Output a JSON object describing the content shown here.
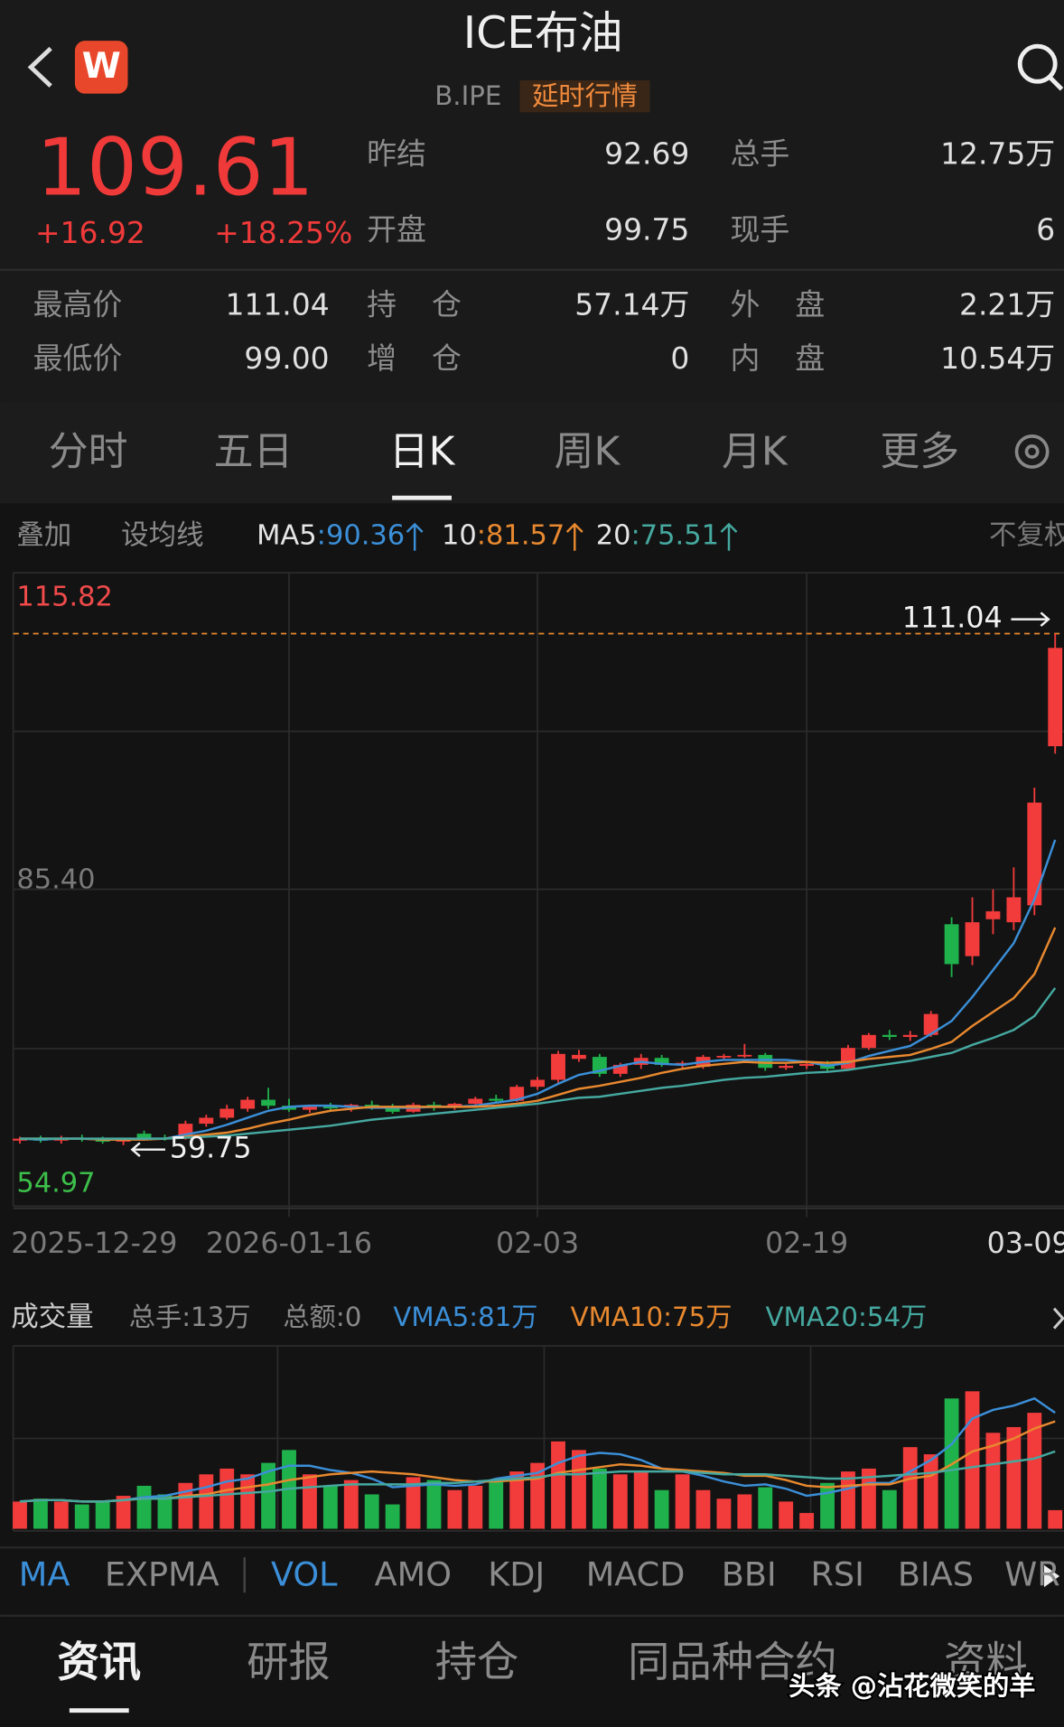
{
  "header": {
    "app_icon": "W",
    "title": "ICE布油",
    "code": "B.IPE",
    "badge": "延时行情"
  },
  "quote": {
    "price": "109.61",
    "change": "+16.92",
    "change_pct": "+18.25%",
    "rows": [
      [
        [
          "昨结",
          "92.69"
        ],
        [
          "总手",
          "12.75万"
        ]
      ],
      [
        [
          "开盘",
          "99.75"
        ],
        [
          "现手",
          "6"
        ]
      ],
      [
        [
          "最高价",
          "111.04"
        ],
        [
          "持 仓",
          "57.14万"
        ],
        [
          "外 盘",
          "2.21万"
        ]
      ],
      [
        [
          "最低价",
          "99.00"
        ],
        [
          "增 仓",
          "0"
        ],
        [
          "内 盘",
          "10.54万"
        ]
      ]
    ]
  },
  "tabs": {
    "items": [
      "分时",
      "五日",
      "日K",
      "周K",
      "月K",
      "更多"
    ],
    "active": 2
  },
  "toolbar": {
    "items": [
      "叠加",
      "设均线"
    ],
    "separator": ":",
    "right": "不复权"
  },
  "chart_data": [
    {
      "type": "candlestick",
      "categories": [
        "2025-12-29",
        null,
        null,
        null,
        null,
        null,
        null,
        null,
        null,
        null,
        null,
        null,
        null,
        "2026-01-16",
        null,
        null,
        null,
        null,
        null,
        null,
        null,
        null,
        null,
        null,
        null,
        "02-03",
        null,
        null,
        null,
        null,
        null,
        null,
        null,
        null,
        null,
        null,
        null,
        null,
        "02-19",
        null,
        null,
        null,
        null,
        null,
        null,
        null,
        null,
        null,
        null,
        null,
        "03-09"
      ],
      "open": [
        60.2,
        60.4,
        60.2,
        60.5,
        60.3,
        60.1,
        60.9,
        60.5,
        60.4,
        61.9,
        62.5,
        63.4,
        64.3,
        63.7,
        63.3,
        63.6,
        63.5,
        63.8,
        63.5,
        63.1,
        63.8,
        63.5,
        63.9,
        64.4,
        64.2,
        65.6,
        66.3,
        68.4,
        68.6,
        66.9,
        67.8,
        68.5,
        67.8,
        67.6,
        68.6,
        68.7,
        68.8,
        67.5,
        67.7,
        67.9,
        67.4,
        69.5,
        70.8,
        70.6,
        70.8,
        81.9,
        78.7,
        82.4,
        82.1,
        83.8,
        99.75
      ],
      "high": [
        60.6,
        60.7,
        60.7,
        60.8,
        60.6,
        60.5,
        61.2,
        60.8,
        62.2,
        62.8,
        63.8,
        64.6,
        65.5,
        64.4,
        63.8,
        64.0,
        63.9,
        64.2,
        63.9,
        64.0,
        64.1,
        64.0,
        64.6,
        64.8,
        65.8,
        66.6,
        69.2,
        69.3,
        68.9,
        68.0,
        68.9,
        68.8,
        68.2,
        68.8,
        68.9,
        69.9,
        69.0,
        67.9,
        68.1,
        68.2,
        69.8,
        71.0,
        71.3,
        71.2,
        73.2,
        82.6,
        84.6,
        85.4,
        87.6,
        95.6,
        111.04
      ],
      "low": [
        59.9,
        60.0,
        59.9,
        60.1,
        59.9,
        59.75,
        60.3,
        60.2,
        60.3,
        61.6,
        62.3,
        63.1,
        63.4,
        63.1,
        63.0,
        63.3,
        63.1,
        63.3,
        62.9,
        63.0,
        63.2,
        63.3,
        63.6,
        64.0,
        64.1,
        65.3,
        66.0,
        68.1,
        66.6,
        66.6,
        67.4,
        67.6,
        67.5,
        67.4,
        68.2,
        68.5,
        67.2,
        67.3,
        67.4,
        67.1,
        67.2,
        69.3,
        70.3,
        70.2,
        70.6,
        76.6,
        77.8,
        80.9,
        81.3,
        82.8,
        99
      ],
      "close": [
        60.4,
        60.2,
        60.5,
        60.3,
        60.1,
        60.4,
        60.5,
        60.4,
        61.9,
        62.5,
        63.4,
        64.3,
        63.7,
        63.3,
        63.6,
        63.5,
        63.8,
        63.5,
        63.1,
        63.8,
        63.5,
        63.9,
        64.4,
        64.2,
        65.6,
        66.3,
        68.9,
        68.8,
        66.9,
        67.8,
        68.5,
        67.8,
        68.0,
        68.6,
        68.7,
        68.8,
        67.5,
        67.7,
        67.9,
        67.4,
        69.5,
        70.8,
        70.6,
        70.8,
        72.9,
        77.9,
        82.1,
        83.2,
        84.6,
        94.1,
        109.61
      ],
      "up_color": "#f23b3b",
      "down_color": "#1fb14b",
      "ylim": [
        54.97,
        115.82
      ],
      "yticks": [
        115.82,
        {
          "value": 85.4,
          "label": "85.40"
        },
        54.97
      ],
      "series": [
        {
          "name": "MA5",
          "color": "#3b8fd8",
          "values": [
            60.4,
            60.3,
            60.4,
            60.4,
            60.3,
            60.3,
            60.4,
            60.4,
            60.8,
            61.2,
            61.8,
            62.5,
            63.2,
            63.6,
            63.7,
            63.7,
            63.6,
            63.5,
            63.5,
            63.5,
            63.6,
            63.6,
            63.7,
            64.0,
            64.3,
            64.9,
            65.9,
            66.8,
            67.2,
            67.7,
            68.1,
            67.9,
            67.8,
            68.1,
            68.3,
            68.3,
            68.3,
            68.3,
            68.1,
            67.7,
            68.0,
            68.7,
            69.2,
            69.7,
            70.9,
            72.2,
            74.6,
            77.3,
            80.0,
            84.4,
            90.36
          ]
        },
        {
          "name": "10",
          "color": "#e8892f",
          "values": [
            60.4,
            60.4,
            60.4,
            60.4,
            60.3,
            60.3,
            60.3,
            60.4,
            60.6,
            60.8,
            61.0,
            61.4,
            61.9,
            62.3,
            62.8,
            63.2,
            63.4,
            63.6,
            63.6,
            63.6,
            63.6,
            63.6,
            63.6,
            63.7,
            63.9,
            64.2,
            64.8,
            65.4,
            65.7,
            66.1,
            66.5,
            67.0,
            67.4,
            67.7,
            67.9,
            68.1,
            68.0,
            68.0,
            68.1,
            68.0,
            68.1,
            68.4,
            68.6,
            68.8,
            69.4,
            70.1,
            71.7,
            73.1,
            74.5,
            76.9,
            81.57
          ]
        },
        {
          "name": "20",
          "color": "#45a9a0",
          "values": [
            60.4,
            60.4,
            60.4,
            60.4,
            60.4,
            60.4,
            60.4,
            60.4,
            60.5,
            60.6,
            60.7,
            60.9,
            61.1,
            61.3,
            61.5,
            61.7,
            62.0,
            62.3,
            62.5,
            62.7,
            62.9,
            63.1,
            63.3,
            63.5,
            63.7,
            63.9,
            64.2,
            64.5,
            64.6,
            64.9,
            65.2,
            65.5,
            65.7,
            66.0,
            66.3,
            66.5,
            66.6,
            66.8,
            67.0,
            67.1,
            67.3,
            67.6,
            67.9,
            68.2,
            68.6,
            69.0,
            69.8,
            70.5,
            71.3,
            72.7,
            75.51
          ]
        }
      ]
    },
    {
      "type": "bar",
      "title": "成交量",
      "stats": [
        "总手:13万",
        "总额:0"
      ],
      "values": [
        19,
        21,
        19,
        17,
        19,
        23,
        30,
        24,
        32,
        38,
        42,
        38,
        46,
        55,
        38,
        30,
        34,
        24,
        17,
        36,
        34,
        27,
        30,
        34,
        40,
        46,
        61,
        55,
        42,
        38,
        40,
        27,
        38,
        27,
        21,
        24,
        29,
        19,
        11,
        32,
        40,
        42,
        27,
        57,
        52,
        91,
        96,
        67,
        71,
        81,
        13
      ],
      "ylim": [
        0,
        100
      ],
      "series": [
        {
          "name": "VMA5:81万",
          "color": "#3b8fd8",
          "values": [
            19,
            20,
            20,
            19,
            19,
            20,
            22,
            23,
            26,
            29,
            33,
            35,
            40,
            44,
            44,
            41,
            39,
            35,
            29,
            30,
            31,
            30,
            31,
            35,
            37,
            39,
            46,
            51,
            53,
            52,
            48,
            42,
            40,
            37,
            33,
            30,
            31,
            28,
            23,
            25,
            28,
            32,
            32,
            40,
            48,
            59,
            77,
            83,
            86,
            91,
            81
          ]
        },
        {
          "name": "VMA10:75万",
          "color": "#e8892f",
          "values": [
            19,
            20,
            20,
            19,
            19,
            20,
            21,
            21,
            23,
            24,
            27,
            29,
            31,
            34,
            36,
            38,
            39,
            40,
            39,
            38,
            36,
            34,
            33,
            33,
            34,
            35,
            39,
            41,
            43,
            45,
            44,
            42,
            41,
            40,
            39,
            37,
            37,
            34,
            30,
            29,
            30,
            31,
            31,
            35,
            37,
            45,
            54,
            58,
            63,
            70,
            75
          ]
        },
        {
          "name": "VMA20:54万",
          "color": "#45a9a0",
          "values": [
            19,
            20,
            20,
            19,
            19,
            20,
            21,
            21,
            22,
            23,
            24,
            25,
            26,
            28,
            29,
            30,
            31,
            31,
            31,
            31,
            32,
            32,
            33,
            34,
            35,
            36,
            38,
            38,
            39,
            40,
            40,
            40,
            40,
            39,
            38,
            38,
            38,
            37,
            36,
            35,
            35,
            36,
            37,
            38,
            39,
            41,
            43,
            45,
            47,
            49,
            54
          ]
        }
      ]
    }
  ],
  "indicators": {
    "items": [
      "MA",
      "EXPMA",
      "VOL",
      "AMO",
      "KDJ",
      "MACD",
      "BBI",
      "RSI",
      "BIAS",
      "WR"
    ],
    "active": [
      0,
      2
    ]
  },
  "bottom_tabs": {
    "items": [
      "资讯",
      "研报",
      "持仓",
      "同品种合约",
      "资料"
    ],
    "active": 0
  },
  "watermark": "头条 @沾花微笑的羊"
}
